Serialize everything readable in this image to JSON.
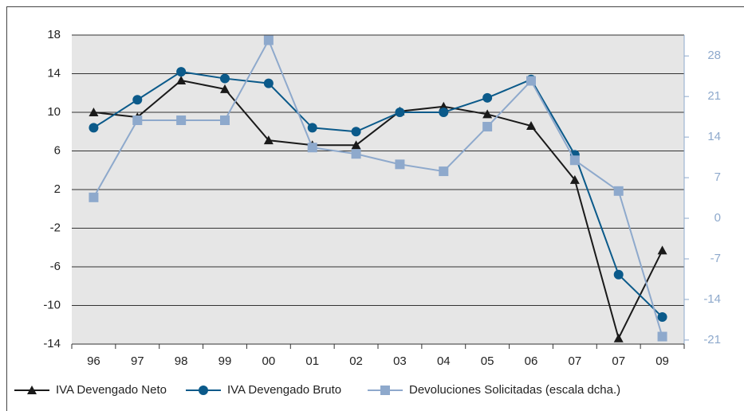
{
  "chart_data": {
    "type": "line",
    "categories": [
      "96",
      "97",
      "98",
      "99",
      "00",
      "01",
      "02",
      "03",
      "04",
      "05",
      "06",
      "07",
      "07",
      "09"
    ],
    "series": [
      {
        "name": "IVA Devengado Neto",
        "color": "#1a1a1a",
        "marker": "triangle",
        "values": [
          10.0,
          9.5,
          13.3,
          12.4,
          7.1,
          6.6,
          6.6,
          10.1,
          10.6,
          9.8,
          8.6,
          3.0,
          -13.4,
          -4.3
        ]
      },
      {
        "name": "IVA Devengado Bruto",
        "color": "#0b5a8a",
        "marker": "circle",
        "values": [
          8.4,
          11.3,
          14.2,
          13.5,
          13.0,
          8.4,
          8.0,
          10.0,
          10.0,
          11.5,
          13.4,
          5.6,
          -6.8,
          -11.2
        ]
      },
      {
        "name": "Devoluciones Solicitadas (escala dcha.)",
        "color": "#8ea9cc",
        "marker": "square",
        "axis": "y2",
        "values": [
          3.6,
          16.9,
          16.9,
          16.9,
          30.7,
          12.2,
          11.1,
          9.3,
          8.1,
          15.8,
          23.7,
          10.0,
          4.7,
          -20.4
        ]
      }
    ],
    "ylim": [
      -14,
      18
    ],
    "yticks": [
      -14,
      -10,
      -6,
      -2,
      2,
      6,
      10,
      14,
      18
    ],
    "y2lim": [
      -21.7,
      31.6
    ],
    "y2ticks": [
      -21,
      -14,
      -7,
      0,
      7,
      14,
      21,
      28
    ],
    "grid": true,
    "legend": "bottom"
  }
}
